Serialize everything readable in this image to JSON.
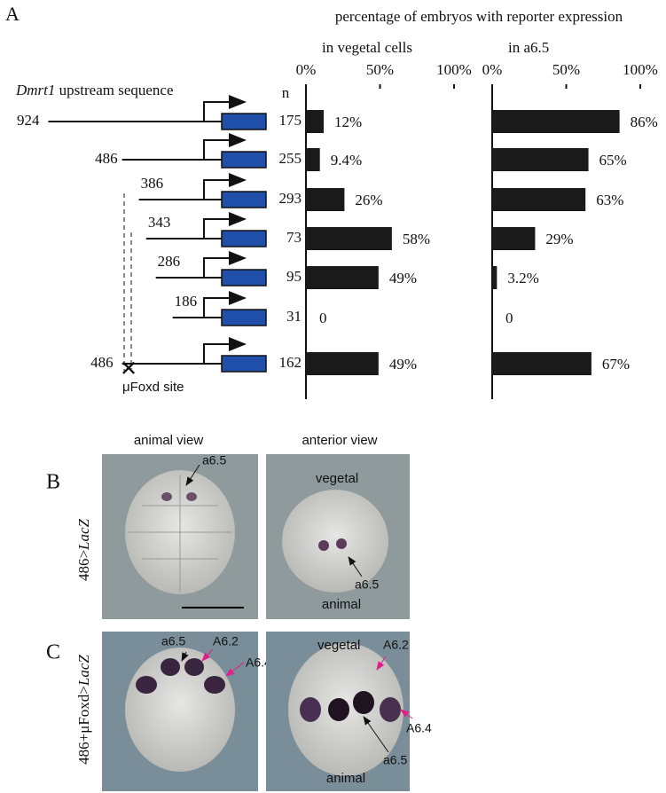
{
  "panel_labels": [
    "A",
    "B",
    "C"
  ],
  "header": "percentage of embryos with reporter expression",
  "gene": "Dmrt1",
  "gene_suffix": "upstream sequence",
  "n_header": "n",
  "site_label": "μFoxd site",
  "constructs": [
    {
      "length": 924,
      "n": 175
    },
    {
      "length": 486,
      "n": 255
    },
    {
      "length": 386,
      "n": 293
    },
    {
      "length": 343,
      "n": 73
    },
    {
      "length": 286,
      "n": 95
    },
    {
      "length": 186,
      "n": 31
    },
    {
      "length": 486,
      "n": 162
    }
  ],
  "chart_data": [
    {
      "type": "hbar",
      "subtitle": "in vegetal cells",
      "values": [
        12,
        9.4,
        26,
        58,
        49,
        0,
        49
      ],
      "value_labels": [
        "12%",
        "9.4%",
        "26%",
        "58%",
        "49%",
        "0",
        "49%"
      ],
      "color": "#1a1a1a",
      "xlim": [
        0,
        100
      ],
      "xticks": [
        {
          "value": 0,
          "label": "0%"
        },
        {
          "value": 50,
          "label": "50%"
        },
        {
          "value": 100,
          "label": "100%"
        }
      ]
    },
    {
      "type": "hbar",
      "subtitle": "in a6.5",
      "values": [
        86,
        65,
        63,
        29,
        3.2,
        0,
        67
      ],
      "value_labels": [
        "86%",
        "65%",
        "63%",
        "29%",
        "3.2%",
        "0",
        "67%"
      ],
      "color": "#1a1a1a",
      "xlim": [
        0,
        100
      ],
      "xticks": [
        {
          "value": 0,
          "label": "0%"
        },
        {
          "value": 50,
          "label": "50%"
        },
        {
          "value": 100,
          "label": "100%"
        }
      ]
    }
  ],
  "views": {
    "animal": "animal view",
    "anterior": "anterior view"
  },
  "panel_b": {
    "construct_prefix": "486>",
    "construct_gene": "LacZ",
    "label_a65_left": "a6.5",
    "label_vegetal": "vegetal",
    "label_a65_right": "a6.5",
    "label_animal": "animal"
  },
  "panel_c": {
    "construct_prefix": "486+μFoxd>",
    "construct_gene": "LacZ",
    "label_a65_left": "a6.5",
    "label_A62_left": "A6.2",
    "label_A64_left": "A6.4",
    "label_vegetal": "vegetal",
    "label_A62_right": "A6.2",
    "label_A64_right": "A6.4",
    "label_a65_right": "a6.5",
    "label_animal": "animal"
  }
}
